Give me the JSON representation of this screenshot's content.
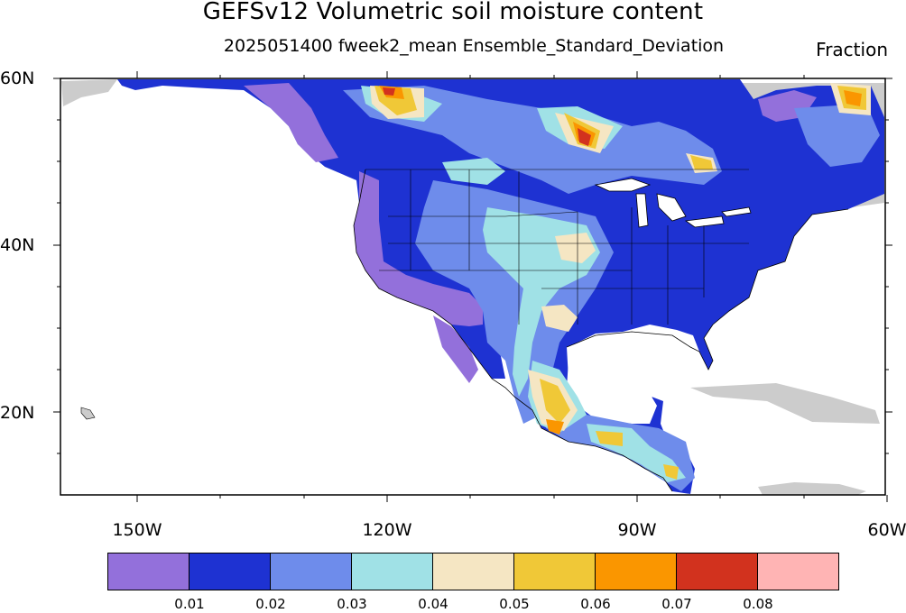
{
  "title": "GEFSv12 Volumetric soil moisture content",
  "subtitle": "2025051400 fweek2_mean Ensemble_Standard_Deviation",
  "units": "Fraction",
  "lat_labels": [
    "60N",
    "40N",
    "20N"
  ],
  "lon_labels": [
    "150W",
    "120W",
    "90W",
    "60W"
  ],
  "colorbar": {
    "labels": [
      "0.01",
      "0.02",
      "0.03",
      "0.04",
      "0.05",
      "0.06",
      "0.07",
      "0.08"
    ],
    "colors": [
      "#9370db",
      "#1e32d2",
      "#6e8ceb",
      "#a0e1e6",
      "#f5e6c3",
      "#f0c837",
      "#fa9600",
      "#d2321e",
      "#ffb4b4"
    ]
  },
  "colors": {
    "lavender": "#9370db",
    "blue": "#1e32d2",
    "cornflower": "#6e8ceb",
    "cyan": "#a0e1e6",
    "wheat": "#f5e6c3",
    "gold": "#f0c837",
    "orange": "#fa9600",
    "red": "#d2321e",
    "nodata": "#cccccc"
  }
}
